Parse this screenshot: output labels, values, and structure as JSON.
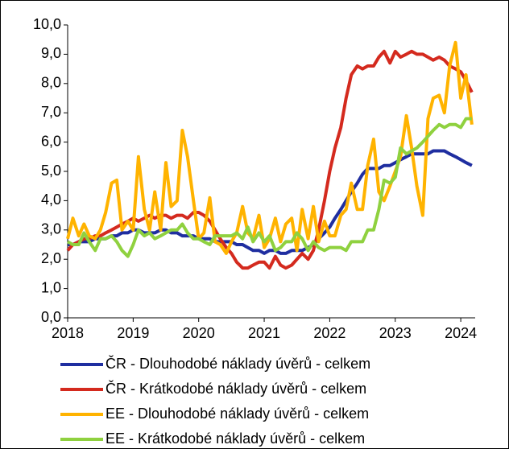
{
  "chart_data": {
    "type": "line",
    "x": [
      2018,
      2018.08,
      2018.17,
      2018.25,
      2018.33,
      2018.42,
      2018.5,
      2018.58,
      2018.67,
      2018.75,
      2018.83,
      2018.92,
      2019,
      2019.08,
      2019.17,
      2019.25,
      2019.33,
      2019.42,
      2019.5,
      2019.58,
      2019.67,
      2019.75,
      2019.83,
      2019.92,
      2020,
      2020.08,
      2020.17,
      2020.25,
      2020.33,
      2020.42,
      2020.5,
      2020.58,
      2020.67,
      2020.75,
      2020.83,
      2020.92,
      2021,
      2021.08,
      2021.17,
      2021.25,
      2021.33,
      2021.42,
      2021.5,
      2021.58,
      2021.67,
      2021.75,
      2021.83,
      2021.92,
      2022,
      2022.08,
      2022.17,
      2022.25,
      2022.33,
      2022.42,
      2022.5,
      2022.58,
      2022.67,
      2022.75,
      2022.83,
      2022.92,
      2023,
      2023.08,
      2023.17,
      2023.25,
      2023.33,
      2023.42,
      2023.5,
      2023.58,
      2023.67,
      2023.75,
      2023.83,
      2023.92,
      2024,
      2024.08,
      2024.17
    ],
    "series": [
      {
        "name": "ČR - Dlouhodobé náklady úvěrů - celkem",
        "color": "#1f2ea0",
        "values": [
          2.5,
          2.5,
          2.6,
          2.6,
          2.6,
          2.7,
          2.7,
          2.7,
          2.8,
          2.8,
          2.9,
          2.9,
          3.0,
          3.0,
          2.9,
          2.9,
          2.9,
          3.0,
          3.0,
          2.9,
          2.9,
          2.8,
          2.8,
          2.8,
          2.7,
          2.7,
          2.7,
          2.6,
          2.6,
          2.6,
          2.6,
          2.5,
          2.5,
          2.4,
          2.3,
          2.3,
          2.2,
          2.3,
          2.3,
          2.2,
          2.2,
          2.3,
          2.3,
          2.3,
          2.4,
          2.5,
          2.7,
          2.9,
          3.1,
          3.4,
          3.7,
          4.0,
          4.3,
          4.6,
          4.9,
          5.1,
          5.1,
          5.1,
          5.2,
          5.2,
          5.3,
          5.4,
          5.5,
          5.6,
          5.6,
          5.6,
          5.6,
          5.7,
          5.7,
          5.7,
          5.6,
          5.5,
          5.4,
          5.3,
          5.2
        ]
      },
      {
        "name": "ČR - Krátkodobé náklady úvěrů - celkem",
        "color": "#d42a1e",
        "values": [
          2.3,
          2.5,
          2.6,
          2.7,
          2.7,
          2.8,
          2.8,
          2.9,
          3.0,
          3.1,
          3.2,
          3.3,
          3.4,
          3.3,
          3.4,
          3.5,
          3.4,
          3.5,
          3.5,
          3.4,
          3.5,
          3.5,
          3.4,
          3.6,
          3.6,
          3.5,
          3.3,
          3.0,
          2.7,
          2.4,
          2.2,
          1.9,
          1.7,
          1.7,
          1.8,
          1.9,
          1.9,
          1.7,
          2.1,
          1.8,
          1.7,
          1.8,
          2.0,
          2.2,
          2.0,
          2.3,
          3.0,
          4.0,
          5.0,
          5.8,
          6.5,
          7.5,
          8.3,
          8.6,
          8.5,
          8.6,
          8.6,
          8.9,
          9.1,
          8.7,
          9.1,
          8.9,
          9.0,
          9.1,
          9.0,
          9.0,
          8.9,
          8.8,
          8.9,
          8.8,
          8.6,
          8.5,
          8.4,
          8.1,
          7.7
        ]
      },
      {
        "name": "EE - Dlouhodobé náklady úvěrů - celkem",
        "color": "#ffb300",
        "values": [
          2.7,
          3.4,
          2.8,
          3.2,
          2.8,
          2.7,
          3.0,
          3.6,
          4.6,
          4.7,
          3.0,
          3.3,
          3.0,
          5.5,
          3.7,
          3.0,
          4.3,
          3.0,
          5.3,
          3.8,
          4.0,
          6.4,
          5.5,
          4.0,
          2.7,
          2.9,
          4.1,
          2.6,
          2.5,
          2.2,
          2.6,
          2.9,
          3.8,
          2.9,
          2.7,
          3.5,
          2.4,
          2.7,
          3.4,
          2.6,
          3.2,
          3.4,
          2.3,
          3.7,
          2.7,
          3.8,
          2.6,
          3.3,
          2.8,
          2.8,
          3.5,
          3.7,
          4.6,
          3.7,
          3.7,
          5.2,
          6.1,
          4.3,
          4.0,
          4.5,
          5.0,
          5.5,
          6.9,
          5.8,
          4.5,
          3.5,
          6.8,
          7.5,
          7.6,
          7.0,
          8.6,
          9.4,
          7.5,
          8.3,
          6.6
        ]
      },
      {
        "name": "EE - Krátkodobé náklady úvěrů - celkem",
        "color": "#8fd13f",
        "values": [
          2.6,
          2.5,
          2.5,
          2.9,
          2.6,
          2.3,
          2.7,
          2.7,
          2.8,
          2.6,
          2.3,
          2.1,
          2.5,
          3.0,
          2.8,
          2.9,
          2.7,
          2.8,
          2.9,
          3.0,
          3.0,
          3.2,
          2.9,
          2.7,
          2.7,
          2.6,
          2.5,
          2.8,
          2.8,
          2.8,
          2.8,
          2.9,
          2.7,
          3.1,
          2.6,
          2.9,
          2.6,
          2.8,
          2.3,
          2.4,
          2.6,
          2.6,
          2.9,
          2.7,
          2.3,
          2.6,
          2.4,
          2.3,
          2.4,
          2.4,
          2.4,
          2.3,
          2.6,
          2.6,
          2.6,
          3.0,
          3.0,
          3.7,
          4.7,
          4.6,
          4.8,
          5.8,
          5.6,
          5.7,
          5.8,
          6.0,
          6.2,
          6.4,
          6.6,
          6.5,
          6.6,
          6.6,
          6.5,
          6.8,
          6.8
        ]
      }
    ],
    "xlim": [
      2018,
      2024.22
    ],
    "xticks": [
      2018,
      2019,
      2020,
      2021,
      2022,
      2023,
      2024
    ],
    "ylim": [
      0,
      10
    ],
    "yticks": [
      {
        "value": 0,
        "label": "0,0"
      },
      {
        "value": 1,
        "label": "1,0"
      },
      {
        "value": 2,
        "label": "2,0"
      },
      {
        "value": 3,
        "label": "3,0"
      },
      {
        "value": 4,
        "label": "4,0"
      },
      {
        "value": 5,
        "label": "5,0"
      },
      {
        "value": 6,
        "label": "6,0"
      },
      {
        "value": 7,
        "label": "7,0"
      },
      {
        "value": 8,
        "label": "8,0"
      },
      {
        "value": 9,
        "label": "9,0"
      },
      {
        "value": 10,
        "label": "10,0"
      }
    ],
    "legend": "bottom"
  }
}
